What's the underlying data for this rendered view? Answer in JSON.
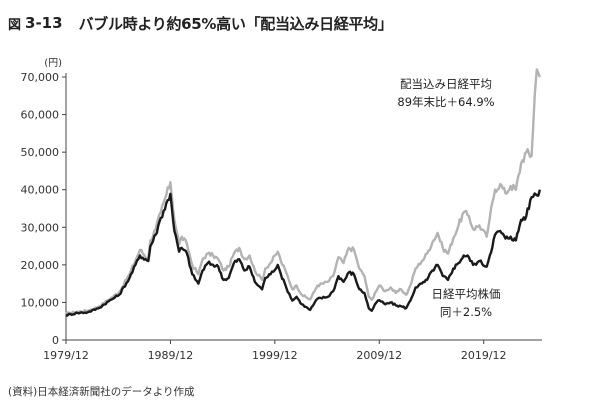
{
  "figure": {
    "label": "図",
    "number": "3-13",
    "title": "バブル時より約65%高い「配当込み日経平均」"
  },
  "source_note": "(資料)日本経済新聞社のデータより作成",
  "colors": {
    "dividend": "#b3b3b3",
    "nikkei": "#1a1a1a",
    "axis": "#444444"
  },
  "chart_data": {
    "type": "line",
    "title": "バブル時より約65%高い「配当込み日経平均」",
    "ylabel": "(円)",
    "xlabel": "",
    "ylim": [
      0,
      70000
    ],
    "xlim": [
      1979.917,
      2025.5
    ],
    "yticks": [
      {
        "value": 0,
        "label": "0"
      },
      {
        "value": 10000,
        "label": "10,000"
      },
      {
        "value": 20000,
        "label": "20,000"
      },
      {
        "value": 30000,
        "label": "30,000"
      },
      {
        "value": 40000,
        "label": "40,000"
      },
      {
        "value": 50000,
        "label": "50,000"
      },
      {
        "value": 60000,
        "label": "60,000"
      },
      {
        "value": 70000,
        "label": "70,000"
      }
    ],
    "xticks": [
      {
        "value": 1979.917,
        "label": "1979/12"
      },
      {
        "value": 1989.917,
        "label": "1989/12"
      },
      {
        "value": 1999.917,
        "label": "1999/12"
      },
      {
        "value": 2009.917,
        "label": "2009/12"
      },
      {
        "value": 2019.917,
        "label": "2019/12"
      }
    ],
    "grid": false,
    "series": [
      {
        "name": "配当込み日経平均",
        "annotation": [
          "配当込み日経平均",
          "89年末比＋64.9%"
        ],
        "x": [
          1979.917,
          1981,
          1982,
          1983,
          1984,
          1985,
          1986,
          1987,
          1987.8,
          1988,
          1988.5,
          1989,
          1989.917,
          1990.3,
          1990.75,
          1991,
          1991.5,
          1992,
          1992.6,
          1993,
          1993.5,
          1994,
          1994.5,
          1995,
          1995.5,
          1996,
          1996.5,
          1997,
          1997.5,
          1998,
          1998.7,
          1999,
          1999.5,
          2000.2,
          2000.5,
          2001,
          2001.6,
          2002,
          2002.5,
          2003.3,
          2004,
          2005,
          2005.5,
          2006,
          2006.5,
          2007,
          2007.5,
          2008,
          2008.5,
          2008.9,
          2009.2,
          2009.5,
          2009.917,
          2010.5,
          2011,
          2011.5,
          2012,
          2012.5,
          2012.9,
          2013.4,
          2014,
          2014.5,
          2015,
          2015.5,
          2016,
          2016.5,
          2017,
          2017.5,
          2018,
          2018.5,
          2018.9,
          2019.5,
          2020.2,
          2020.5,
          2021,
          2021.5,
          2022,
          2022.5,
          2023,
          2023.5,
          2024,
          2024.5,
          2024.8,
          2025,
          2025.3
        ],
        "y": [
          7000,
          7500,
          7800,
          8800,
          10700,
          12700,
          17500,
          24000,
          21500,
          26500,
          29500,
          34000,
          42000,
          32000,
          25500,
          27500,
          25500,
          20000,
          17500,
          21500,
          23000,
          22500,
          21500,
          18500,
          19500,
          23000,
          24500,
          21500,
          22500,
          18500,
          16000,
          19000,
          20500,
          23500,
          21000,
          18000,
          13500,
          14500,
          12000,
          10800,
          14500,
          15500,
          17000,
          22000,
          20500,
          24500,
          24000,
          19000,
          17000,
          11500,
          10700,
          12500,
          14500,
          13000,
          14000,
          12500,
          13500,
          12000,
          14500,
          19000,
          21000,
          23000,
          26000,
          28500,
          24500,
          23000,
          27000,
          30500,
          34000,
          33000,
          29500,
          30500,
          27500,
          32500,
          40000,
          41500,
          39000,
          41000,
          40000,
          47000,
          50000,
          49000,
          65000,
          72000,
          70000
        ]
      },
      {
        "name": "日経平均株価",
        "annotation": [
          "日経平均株価",
          "同＋2.5%"
        ],
        "x": [
          1979.917,
          1981,
          1982,
          1983,
          1984,
          1985,
          1986,
          1987,
          1987.8,
          1988,
          1988.5,
          1989,
          1989.917,
          1990.3,
          1990.75,
          1991,
          1991.5,
          1992,
          1992.6,
          1993,
          1993.5,
          1994,
          1994.5,
          1995,
          1995.5,
          1996,
          1996.5,
          1997,
          1997.5,
          1998,
          1998.7,
          1999,
          1999.5,
          2000.2,
          2000.5,
          2001,
          2001.6,
          2002,
          2002.5,
          2003.3,
          2004,
          2005,
          2005.5,
          2006,
          2006.5,
          2007,
          2007.5,
          2008,
          2008.5,
          2008.9,
          2009.2,
          2009.5,
          2009.917,
          2010.5,
          2011,
          2011.5,
          2012,
          2012.5,
          2012.9,
          2013.4,
          2014,
          2014.5,
          2015,
          2015.5,
          2016,
          2016.5,
          2017,
          2017.5,
          2018,
          2018.5,
          2018.9,
          2019.5,
          2020.2,
          2020.5,
          2021,
          2021.5,
          2022,
          2022.5,
          2023,
          2023.5,
          2024,
          2024.5,
          2024.8,
          2025,
          2025.3
        ],
        "y": [
          6600,
          7200,
          7400,
          8400,
          10300,
          12000,
          16500,
          22500,
          21000,
          25000,
          28000,
          32500,
          38900,
          29000,
          23500,
          24500,
          23000,
          17500,
          15000,
          18500,
          20500,
          20000,
          19500,
          16000,
          16500,
          20500,
          21500,
          18500,
          19500,
          15500,
          13500,
          16500,
          17500,
          20000,
          17500,
          14000,
          10500,
          11500,
          9500,
          8000,
          11000,
          11500,
          13000,
          17000,
          15500,
          18000,
          17500,
          13500,
          12500,
          8500,
          7800,
          9500,
          10600,
          9500,
          10000,
          9200,
          9000,
          8500,
          10500,
          14000,
          15000,
          16000,
          18500,
          20000,
          17000,
          16000,
          19000,
          20500,
          22500,
          22000,
          20000,
          21000,
          19500,
          22500,
          28000,
          29000,
          27000,
          27500,
          26500,
          32000,
          33000,
          38000,
          39000,
          38500,
          40000
        ]
      }
    ]
  }
}
